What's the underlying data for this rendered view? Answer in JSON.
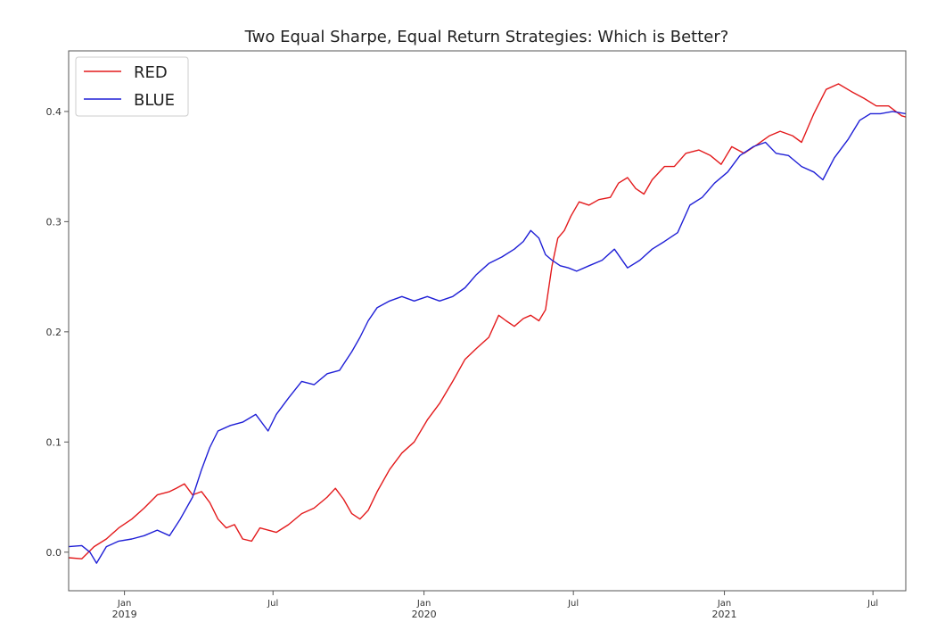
{
  "chart_data": {
    "type": "line",
    "title": "Two Equal Sharpe, Equal Return Strategies: Which is Better?",
    "xlabel": "",
    "ylabel": "",
    "xlim": [
      "2018-10-25",
      "2021-08-10"
    ],
    "ylim": [
      -0.035,
      0.455
    ],
    "grid": false,
    "legend_position": "top-left",
    "y_ticks": [
      {
        "value": 0.0,
        "label": "0.0"
      },
      {
        "value": 0.1,
        "label": "0.1"
      },
      {
        "value": 0.2,
        "label": "0.2"
      },
      {
        "value": 0.3,
        "label": "0.3"
      },
      {
        "value": 0.4,
        "label": "0.4"
      }
    ],
    "x_ticks": [
      {
        "date": "2019-01-01",
        "label": "Jan",
        "sublabel": "2019"
      },
      {
        "date": "2019-07-01",
        "label": "Jul",
        "sublabel": ""
      },
      {
        "date": "2020-01-01",
        "label": "Jan",
        "sublabel": "2020"
      },
      {
        "date": "2020-07-01",
        "label": "Jul",
        "sublabel": ""
      },
      {
        "date": "2021-01-01",
        "label": "Jan",
        "sublabel": "2021"
      },
      {
        "date": "2021-07-01",
        "label": "Jul",
        "sublabel": ""
      }
    ],
    "series": [
      {
        "name": "RED",
        "color": "#e31a1c",
        "points": [
          [
            "2018-10-25",
            -0.005
          ],
          [
            "2018-11-10",
            -0.006
          ],
          [
            "2018-11-25",
            0.005
          ],
          [
            "2018-12-10",
            0.012
          ],
          [
            "2018-12-25",
            0.022
          ],
          [
            "2019-01-10",
            0.03
          ],
          [
            "2019-01-25",
            0.04
          ],
          [
            "2019-02-10",
            0.052
          ],
          [
            "2019-02-25",
            0.055
          ],
          [
            "2019-03-05",
            0.058
          ],
          [
            "2019-03-15",
            0.062
          ],
          [
            "2019-03-25",
            0.052
          ],
          [
            "2019-04-05",
            0.055
          ],
          [
            "2019-04-15",
            0.045
          ],
          [
            "2019-04-25",
            0.03
          ],
          [
            "2019-05-05",
            0.022
          ],
          [
            "2019-05-15",
            0.025
          ],
          [
            "2019-05-25",
            0.012
          ],
          [
            "2019-06-05",
            0.01
          ],
          [
            "2019-06-15",
            0.022
          ],
          [
            "2019-06-25",
            0.02
          ],
          [
            "2019-07-05",
            0.018
          ],
          [
            "2019-07-20",
            0.025
          ],
          [
            "2019-08-05",
            0.035
          ],
          [
            "2019-08-20",
            0.04
          ],
          [
            "2019-09-05",
            0.05
          ],
          [
            "2019-09-15",
            0.058
          ],
          [
            "2019-09-25",
            0.048
          ],
          [
            "2019-10-05",
            0.035
          ],
          [
            "2019-10-15",
            0.03
          ],
          [
            "2019-10-25",
            0.038
          ],
          [
            "2019-11-05",
            0.055
          ],
          [
            "2019-11-20",
            0.075
          ],
          [
            "2019-12-05",
            0.09
          ],
          [
            "2019-12-20",
            0.1
          ],
          [
            "2020-01-05",
            0.12
          ],
          [
            "2020-01-20",
            0.135
          ],
          [
            "2020-02-05",
            0.155
          ],
          [
            "2020-02-20",
            0.175
          ],
          [
            "2020-03-05",
            0.185
          ],
          [
            "2020-03-20",
            0.195
          ],
          [
            "2020-04-01",
            0.215
          ],
          [
            "2020-04-10",
            0.21
          ],
          [
            "2020-04-20",
            0.205
          ],
          [
            "2020-05-01",
            0.212
          ],
          [
            "2020-05-10",
            0.215
          ],
          [
            "2020-05-20",
            0.21
          ],
          [
            "2020-05-28",
            0.22
          ],
          [
            "2020-06-05",
            0.26
          ],
          [
            "2020-06-12",
            0.285
          ],
          [
            "2020-06-20",
            0.292
          ],
          [
            "2020-06-28",
            0.305
          ],
          [
            "2020-07-08",
            0.318
          ],
          [
            "2020-07-20",
            0.315
          ],
          [
            "2020-08-01",
            0.32
          ],
          [
            "2020-08-15",
            0.322
          ],
          [
            "2020-08-25",
            0.335
          ],
          [
            "2020-09-05",
            0.34
          ],
          [
            "2020-09-15",
            0.33
          ],
          [
            "2020-09-25",
            0.325
          ],
          [
            "2020-10-05",
            0.338
          ],
          [
            "2020-10-20",
            0.35
          ],
          [
            "2020-11-01",
            0.35
          ],
          [
            "2020-11-15",
            0.362
          ],
          [
            "2020-12-01",
            0.365
          ],
          [
            "2020-12-15",
            0.36
          ],
          [
            "2020-12-28",
            0.352
          ],
          [
            "2021-01-10",
            0.368
          ],
          [
            "2021-01-25",
            0.362
          ],
          [
            "2021-02-10",
            0.37
          ],
          [
            "2021-02-25",
            0.378
          ],
          [
            "2021-03-10",
            0.382
          ],
          [
            "2021-03-25",
            0.378
          ],
          [
            "2021-04-05",
            0.372
          ],
          [
            "2021-04-20",
            0.398
          ],
          [
            "2021-05-05",
            0.42
          ],
          [
            "2021-05-20",
            0.425
          ],
          [
            "2021-06-05",
            0.418
          ],
          [
            "2021-06-20",
            0.412
          ],
          [
            "2021-07-05",
            0.405
          ],
          [
            "2021-07-20",
            0.405
          ],
          [
            "2021-08-05",
            0.396
          ],
          [
            "2021-08-10",
            0.395
          ]
        ]
      },
      {
        "name": "BLUE",
        "color": "#1f1fd6",
        "points": [
          [
            "2018-10-25",
            0.005
          ],
          [
            "2018-11-10",
            0.006
          ],
          [
            "2018-11-20",
            0.0
          ],
          [
            "2018-11-28",
            -0.01
          ],
          [
            "2018-12-10",
            0.005
          ],
          [
            "2018-12-25",
            0.01
          ],
          [
            "2019-01-10",
            0.012
          ],
          [
            "2019-01-25",
            0.015
          ],
          [
            "2019-02-10",
            0.02
          ],
          [
            "2019-02-25",
            0.015
          ],
          [
            "2019-03-10",
            0.03
          ],
          [
            "2019-03-25",
            0.05
          ],
          [
            "2019-04-05",
            0.075
          ],
          [
            "2019-04-15",
            0.095
          ],
          [
            "2019-04-25",
            0.11
          ],
          [
            "2019-05-10",
            0.115
          ],
          [
            "2019-05-25",
            0.118
          ],
          [
            "2019-06-10",
            0.125
          ],
          [
            "2019-06-25",
            0.11
          ],
          [
            "2019-07-05",
            0.125
          ],
          [
            "2019-07-20",
            0.14
          ],
          [
            "2019-08-05",
            0.155
          ],
          [
            "2019-08-20",
            0.152
          ],
          [
            "2019-09-05",
            0.162
          ],
          [
            "2019-09-20",
            0.165
          ],
          [
            "2019-10-05",
            0.182
          ],
          [
            "2019-10-15",
            0.195
          ],
          [
            "2019-10-25",
            0.21
          ],
          [
            "2019-11-05",
            0.222
          ],
          [
            "2019-11-20",
            0.228
          ],
          [
            "2019-12-05",
            0.232
          ],
          [
            "2019-12-20",
            0.228
          ],
          [
            "2020-01-05",
            0.232
          ],
          [
            "2020-01-20",
            0.228
          ],
          [
            "2020-02-05",
            0.232
          ],
          [
            "2020-02-20",
            0.24
          ],
          [
            "2020-03-05",
            0.252
          ],
          [
            "2020-03-20",
            0.262
          ],
          [
            "2020-04-05",
            0.268
          ],
          [
            "2020-04-20",
            0.275
          ],
          [
            "2020-05-01",
            0.282
          ],
          [
            "2020-05-10",
            0.292
          ],
          [
            "2020-05-20",
            0.285
          ],
          [
            "2020-05-28",
            0.27
          ],
          [
            "2020-06-05",
            0.265
          ],
          [
            "2020-06-15",
            0.26
          ],
          [
            "2020-06-25",
            0.258
          ],
          [
            "2020-07-05",
            0.255
          ],
          [
            "2020-07-20",
            0.26
          ],
          [
            "2020-08-05",
            0.265
          ],
          [
            "2020-08-20",
            0.275
          ],
          [
            "2020-09-05",
            0.258
          ],
          [
            "2020-09-20",
            0.265
          ],
          [
            "2020-10-05",
            0.275
          ],
          [
            "2020-10-20",
            0.282
          ],
          [
            "2020-11-05",
            0.29
          ],
          [
            "2020-11-20",
            0.315
          ],
          [
            "2020-12-05",
            0.322
          ],
          [
            "2020-12-20",
            0.335
          ],
          [
            "2021-01-05",
            0.345
          ],
          [
            "2021-01-20",
            0.36
          ],
          [
            "2021-02-05",
            0.368
          ],
          [
            "2021-02-20",
            0.372
          ],
          [
            "2021-03-05",
            0.362
          ],
          [
            "2021-03-20",
            0.36
          ],
          [
            "2021-04-05",
            0.35
          ],
          [
            "2021-04-20",
            0.345
          ],
          [
            "2021-05-01",
            0.338
          ],
          [
            "2021-05-15",
            0.358
          ],
          [
            "2021-06-01",
            0.375
          ],
          [
            "2021-06-15",
            0.392
          ],
          [
            "2021-06-28",
            0.398
          ],
          [
            "2021-07-10",
            0.398
          ],
          [
            "2021-07-25",
            0.4
          ],
          [
            "2021-08-10",
            0.398
          ]
        ]
      }
    ]
  }
}
